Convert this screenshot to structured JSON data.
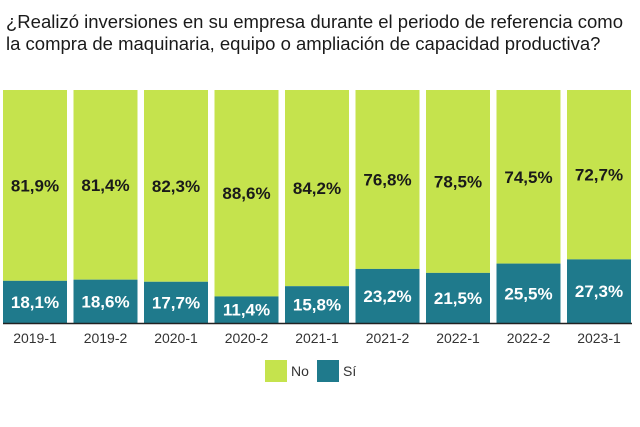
{
  "chart_data": {
    "type": "bar",
    "stacked": true,
    "percent_stacked": true,
    "title": "¿Realizó inversiones en su empresa durante el periodo de referencia como la compra de maquinaria, equipo o ampliación de capacidad productiva?",
    "xlabel": "",
    "ylabel": "",
    "ylim": [
      0,
      100
    ],
    "grid": false,
    "legend_position": "bottom-center",
    "categories": [
      "2019-1",
      "2019-2",
      "2020-1",
      "2020-2",
      "2021-1",
      "2021-2",
      "2022-1",
      "2022-2",
      "2023-1"
    ],
    "series": [
      {
        "name": "Sí",
        "color": "#1f7a8c",
        "label_color": "#ffffff",
        "values": [
          18.1,
          18.6,
          17.7,
          11.4,
          15.8,
          23.2,
          21.5,
          25.5,
          27.3
        ],
        "labels": [
          "18,1%",
          "18,6%",
          "17,7%",
          "11,4%",
          "15,8%",
          "23,2%",
          "21,5%",
          "25,5%",
          "27,3%"
        ]
      },
      {
        "name": "No",
        "color": "#c5e34d",
        "label_color": "#1a1a1a",
        "values": [
          81.9,
          81.4,
          82.3,
          88.6,
          84.2,
          76.8,
          78.5,
          74.5,
          72.7
        ],
        "labels": [
          "81,9%",
          "81,4%",
          "82,3%",
          "88,6%",
          "84,2%",
          "76,8%",
          "78,5%",
          "74,5%",
          "72,7%"
        ]
      }
    ],
    "legend": [
      {
        "name": "No",
        "color": "#c5e34d"
      },
      {
        "name": "Sí",
        "color": "#1f7a8c"
      }
    ]
  }
}
